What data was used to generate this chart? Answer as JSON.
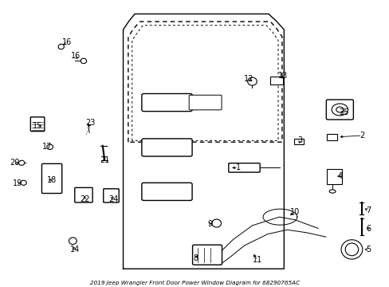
{
  "title": "2019 Jeep Wrangler Front Door Power Window Diagram for 68290765AC",
  "bg_color": "#ffffff",
  "fig_width": 4.89,
  "fig_height": 3.6,
  "dpi": 100
}
